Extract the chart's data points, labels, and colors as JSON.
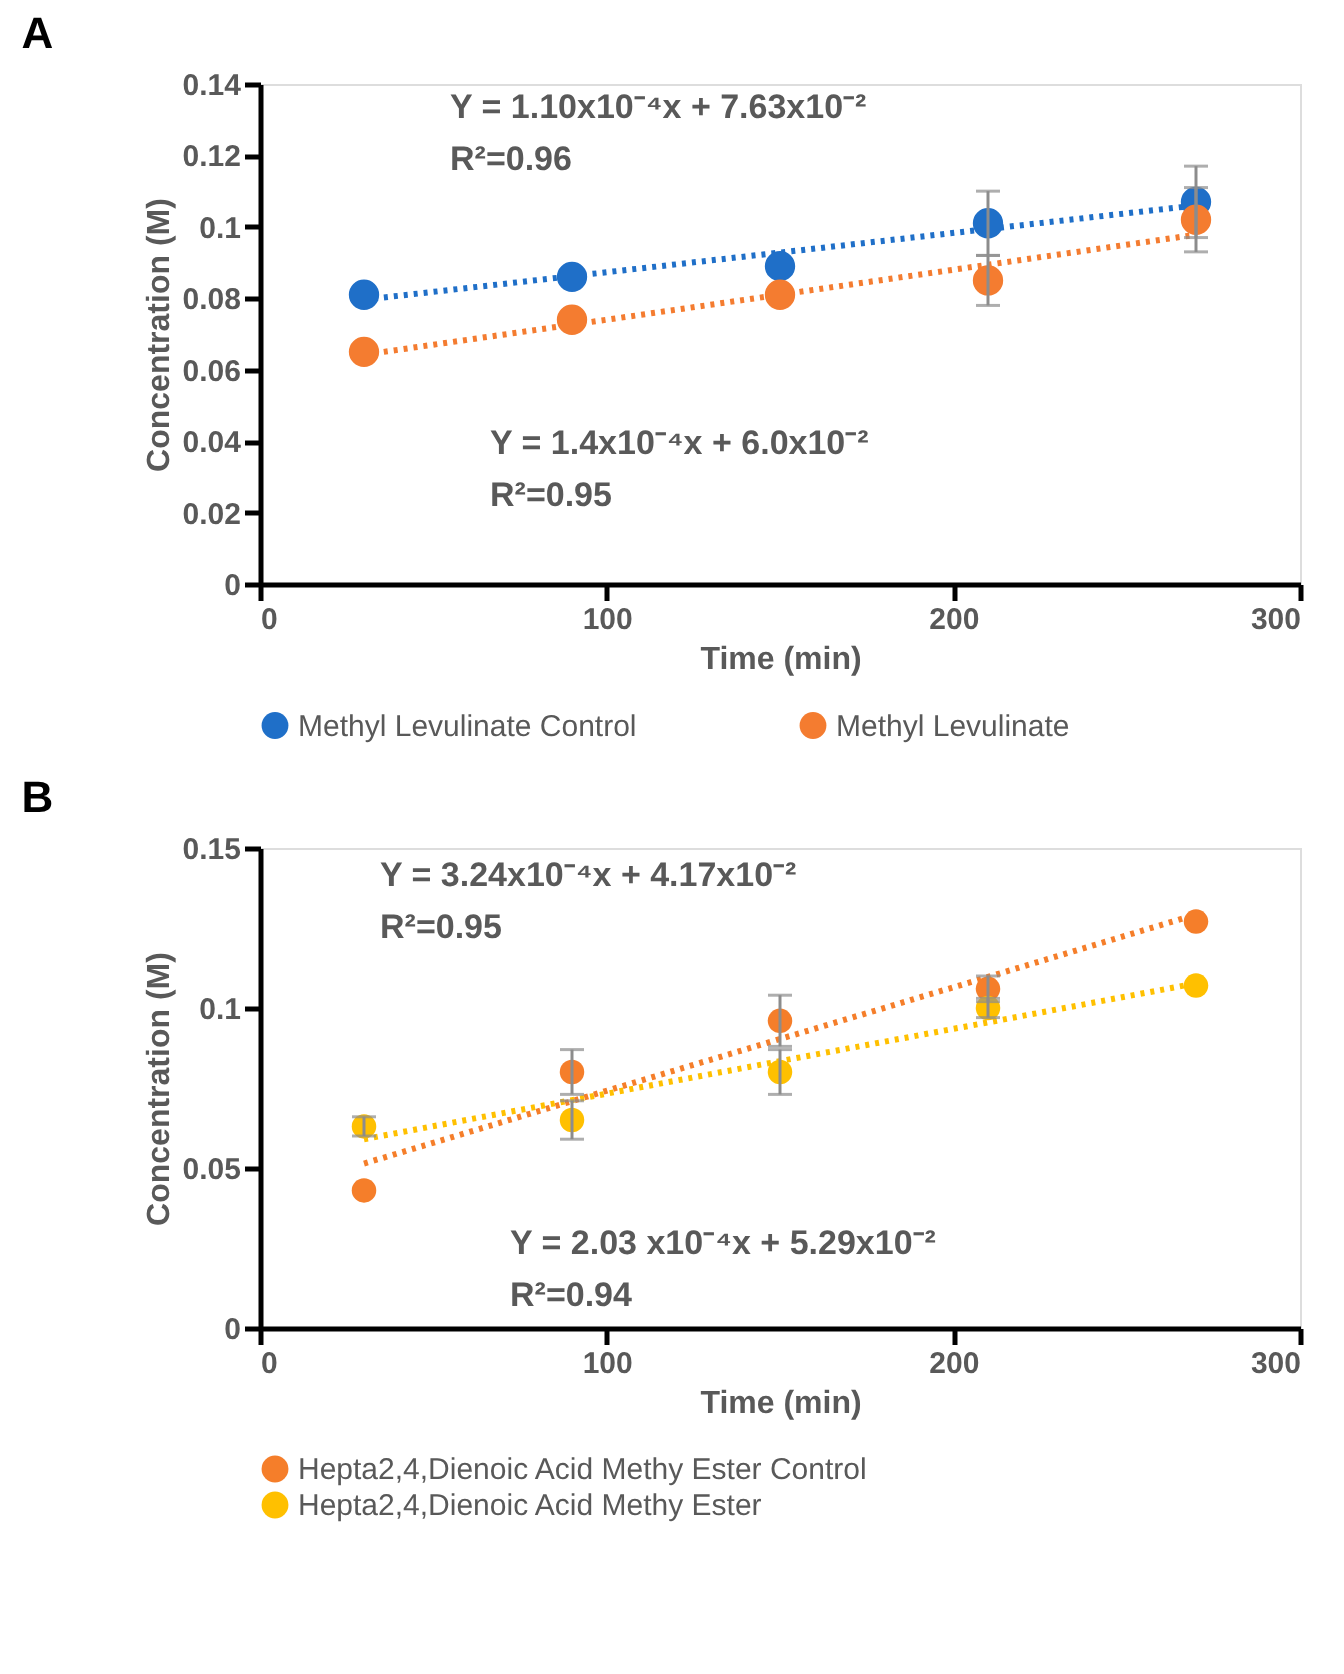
{
  "chart_data": [
    {
      "type": "scatter",
      "title": "A",
      "xlabel": "Time (min)",
      "ylabel": "Concentration (M)",
      "xlim": [
        0,
        300
      ],
      "xticks": [
        0,
        100,
        200,
        300
      ],
      "ylim": [
        0,
        0.14
      ],
      "yticks": [
        0,
        0.02,
        0.04,
        0.06,
        0.08,
        0.1,
        0.12,
        0.14
      ],
      "grid": false,
      "legend": "bottom",
      "x": [
        30,
        90,
        150,
        210,
        270
      ],
      "series": [
        {
          "name": "Methyl Levulinate Control",
          "color": "#1f6fc8",
          "marker": "circle",
          "values": [
            0.081,
            0.086,
            0.089,
            0.101,
            0.107
          ],
          "errors": [
            null,
            null,
            null,
            0.009,
            0.01
          ]
        },
        {
          "name": "Methyl Levulinate",
          "color": "#f47c30",
          "marker": "circle",
          "values": [
            0.065,
            0.074,
            0.081,
            0.085,
            0.102
          ],
          "errors": [
            null,
            null,
            null,
            0.007,
            0.009
          ]
        },
        {
          "type": "line",
          "color": "#1f6fc8",
          "line_style": "dotted",
          "values": [
            0.0796,
            0.0862,
            0.0928,
            0.0994,
            0.106
          ]
        },
        {
          "type": "line",
          "color": "#f47c30",
          "line_style": "dotted",
          "values": [
            0.0642,
            0.0726,
            0.081,
            0.0894,
            0.0978
          ]
        }
      ],
      "annotations": [
        "Y = 1.10x10⁻⁴x + 7.63x10⁻²",
        "R²=0.96",
        "Y = 1.4x10⁻⁴x + 6.0x10⁻²",
        "R²=0.95"
      ]
    },
    {
      "type": "scatter",
      "title": "B",
      "xlabel": "Time (min)",
      "ylabel": "Concentration (M)",
      "xlim": [
        0,
        300
      ],
      "xticks": [
        0,
        100,
        200,
        300
      ],
      "ylim": [
        0,
        0.15
      ],
      "yticks": [
        0,
        0.05,
        0.1,
        0.15
      ],
      "grid": false,
      "legend": "bottom",
      "x": [
        30,
        90,
        150,
        210,
        270
      ],
      "series": [
        {
          "name": "Hepta2,4,Dienoic Acid Methy Ester Control",
          "color": "#f57e2a",
          "marker": "circle",
          "values": [
            0.043,
            0.08,
            0.096,
            0.106,
            0.127
          ],
          "errors": [
            null,
            0.007,
            0.008,
            0.004,
            null
          ]
        },
        {
          "name": "Hepta2,4,Dienoic Acid Methy Ester",
          "color": "#ffc000",
          "marker": "circle",
          "values": [
            0.063,
            0.065,
            0.08,
            0.1,
            0.107
          ],
          "errors": [
            0.003,
            0.006,
            0.007,
            0.003,
            null
          ]
        },
        {
          "type": "line",
          "color": "#f57e2a",
          "line_style": "dotted",
          "values": [
            0.0514,
            0.0709,
            0.0903,
            0.1097,
            0.1292
          ]
        },
        {
          "type": "line",
          "color": "#ffc000",
          "line_style": "dotted",
          "values": [
            0.059,
            0.0712,
            0.0834,
            0.0955,
            0.1077
          ]
        }
      ],
      "annotations": [
        "Y = 3.24x10⁻⁴x + 4.17x10⁻²",
        "R²=0.95",
        "Y = 2.03 x10⁻⁴x + 5.29x10⁻²",
        "R²=0.94"
      ]
    }
  ]
}
